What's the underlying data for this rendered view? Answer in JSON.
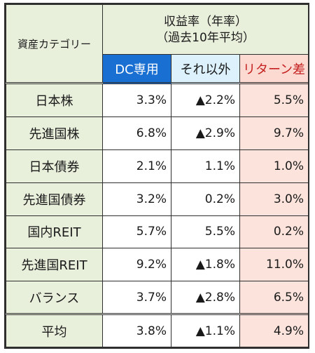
{
  "header": {
    "category": "資産カテゴリー",
    "group_line1": "収益率（年率）",
    "group_line2": "（過去10年平均）",
    "col_dc": "DC専用",
    "col_other": "それ以外",
    "col_diff": "リターン差"
  },
  "rows": [
    {
      "label": "日本株",
      "dc": "3.3%",
      "other": "▲2.2%",
      "diff": "5.5%"
    },
    {
      "label": "先進国株",
      "dc": "6.8%",
      "other": "▲2.9%",
      "diff": "9.7%"
    },
    {
      "label": "日本債券",
      "dc": "2.1%",
      "other": "1.1%",
      "diff": "1.0%"
    },
    {
      "label": "先進国債券",
      "dc": "3.2%",
      "other": "0.2%",
      "diff": "3.0%"
    },
    {
      "label": "国内REIT",
      "dc": "5.7%",
      "other": "5.5%",
      "diff": "0.2%"
    },
    {
      "label": "先進国REIT",
      "dc": "9.2%",
      "other": "▲1.8%",
      "diff": "11.0%"
    },
    {
      "label": "バランス",
      "dc": "3.7%",
      "other": "▲2.8%",
      "diff": "6.5%"
    },
    {
      "label": "平均",
      "dc": "3.8%",
      "other": "▲1.1%",
      "diff": "4.9%"
    }
  ],
  "colors": {
    "header_bg": "#e8efdb",
    "dc_header_bg": "#1a6fd2",
    "other_header_bg": "#dcf1fb",
    "diff_header_bg": "#fcdad1",
    "diff_header_text": "#c52020",
    "diff_cell_bg": "#fce3dc"
  }
}
